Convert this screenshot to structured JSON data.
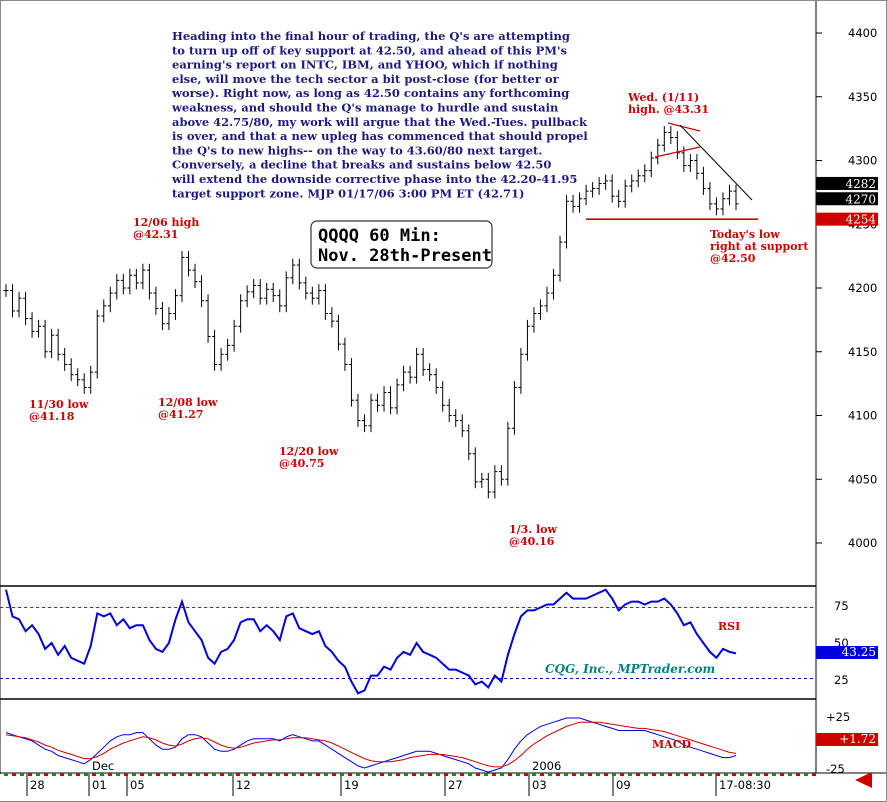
{
  "chart_data": [
    {
      "type": "line",
      "title": "QQQQ 60 Min:",
      "subtitle": "Nov. 28th-Present",
      "ylim": [
        3980,
        4420
      ],
      "y_ticks": [
        "4400",
        "4350",
        "4300",
        "4250",
        "4200",
        "4150",
        "4100",
        "4050",
        "4000"
      ],
      "price_tags": [
        {
          "label": "4282",
          "value": 4282,
          "color": "#000000"
        },
        {
          "label": "4270",
          "value": 4270,
          "color": "#000000"
        },
        {
          "label": "4254",
          "value": 4254,
          "color": "#cc0000"
        }
      ],
      "series": [
        {
          "values": [
            4198,
            4182,
            4192,
            4176,
            4166,
            4170,
            4150,
            4163,
            4148,
            4140,
            4132,
            4128,
            4122,
            4134,
            4178,
            4186,
            4196,
            4206,
            4200,
            4210,
            4204,
            4214,
            4196,
            4184,
            4172,
            4180,
            4194,
            4224,
            4214,
            4205,
            4190,
            4162,
            4140,
            4148,
            4155,
            4170,
            4190,
            4197,
            4202,
            4192,
            4199,
            4194,
            4186,
            4208,
            4218,
            4204,
            4196,
            4192,
            4198,
            4180,
            4174,
            4156,
            4140,
            4112,
            4096,
            4092,
            4112,
            4108,
            4118,
            4106,
            4124,
            4134,
            4130,
            4148,
            4136,
            4132,
            4122,
            4108,
            4100,
            4096,
            4088,
            4070,
            4048,
            4050,
            4040,
            4056,
            4050,
            4090,
            4122,
            4148,
            4170,
            4180,
            4186,
            4196,
            4210,
            4236,
            4268,
            4264,
            4270,
            4276,
            4278,
            4282,
            4284,
            4272,
            4268,
            4280,
            4284,
            4288,
            4292,
            4302,
            4312,
            4322,
            4318,
            4306,
            4296,
            4300,
            4290,
            4278,
            4266,
            4262,
            4270,
            4276,
            4266
          ]
        }
      ],
      "annotations": [
        {
          "lines": [
            "12/06 high",
            "@42.31"
          ]
        },
        {
          "lines": [
            "11/30 low",
            "@41.18"
          ]
        },
        {
          "lines": [
            "12/08 low",
            "@41.27"
          ]
        },
        {
          "lines": [
            "12/20 low",
            "@40.75"
          ]
        },
        {
          "lines": [
            "1/3. low",
            "@40.16"
          ]
        },
        {
          "lines": [
            "Wed. (1/11)",
            "high. @43.31"
          ]
        },
        {
          "lines": [
            "Today's low",
            "right at support",
            "@42.50"
          ]
        }
      ],
      "commentary": [
        "Heading into the final hour of trading, the Q's are attempting",
        "to turn up off of key support at 42.50, and ahead of this PM's",
        "earning's report on INTC, IBM, and YHOO, which if nothing",
        "else, will move the tech sector a bit post-close (for better or",
        "worse). Right now, as long as 42.50 contains any forthcoming",
        "weakness, and should the Q's manage to hurdle and sustain",
        "above 42.75/80, my work will argue that the Wed.-Tues. pullback",
        "is over, and that a new upleg has commenced that should propel",
        "the Q's to new highs-- on the way to 43.60/80 next target.",
        "Conversely, a decline that breaks and sustains below 42.50",
        "will extend the downside corrective phase into the 42.20-41.95",
        "target support zone.  MJP  01/17/06 3:00 PM ET  (42.71)"
      ],
      "support_level": 4254,
      "colors": {
        "support": "#cc0000",
        "bars": "#000000"
      }
    },
    {
      "type": "line",
      "title": "RSI",
      "ylim": [
        10,
        90
      ],
      "y_ticks": [
        "75",
        "50",
        "25"
      ],
      "reference_lines": [
        74,
        26
      ],
      "value_tag": "43.25",
      "series": [
        {
          "name": "RSI",
          "values": [
            86,
            68,
            66,
            58,
            62,
            56,
            46,
            50,
            42,
            48,
            40,
            38,
            36,
            48,
            70,
            68,
            70,
            62,
            66,
            60,
            62,
            62,
            52,
            46,
            44,
            50,
            66,
            78,
            64,
            58,
            52,
            40,
            36,
            44,
            46,
            52,
            64,
            66,
            66,
            58,
            62,
            58,
            52,
            68,
            70,
            60,
            58,
            56,
            58,
            48,
            44,
            38,
            34,
            24,
            16,
            18,
            28,
            28,
            34,
            32,
            40,
            44,
            42,
            50,
            44,
            42,
            40,
            36,
            32,
            32,
            30,
            28,
            22,
            24,
            20,
            28,
            24,
            42,
            56,
            68,
            72,
            72,
            74,
            76,
            76,
            80,
            84,
            80,
            80,
            80,
            82,
            84,
            86,
            80,
            72,
            76,
            78,
            78,
            76,
            78,
            78,
            80,
            76,
            70,
            62,
            64,
            56,
            50,
            44,
            40,
            46,
            44,
            43
          ]
        }
      ],
      "colors": {
        "line": "#0000dd",
        "reference": "#cc0000",
        "tag_bg": "#0000dd"
      }
    },
    {
      "type": "line",
      "title": "MACD",
      "ylim": [
        -30,
        30
      ],
      "y_ticks": [
        "+25",
        "-25"
      ],
      "value_tag": "+1.72",
      "series": [
        {
          "name": "MACD",
          "values": [
            10,
            8,
            6,
            4,
            2,
            -2,
            -6,
            -8,
            -12,
            -14,
            -16,
            -18,
            -20,
            -16,
            -10,
            -4,
            2,
            6,
            8,
            8,
            10,
            10,
            4,
            -2,
            -6,
            -6,
            -4,
            4,
            8,
            8,
            6,
            0,
            -6,
            -8,
            -8,
            -6,
            -2,
            2,
            4,
            4,
            4,
            4,
            2,
            6,
            8,
            6,
            4,
            2,
            2,
            -2,
            -6,
            -10,
            -14,
            -18,
            -22,
            -24,
            -22,
            -20,
            -18,
            -16,
            -14,
            -12,
            -10,
            -8,
            -8,
            -8,
            -10,
            -12,
            -14,
            -16,
            -18,
            -20,
            -24,
            -26,
            -28,
            -26,
            -24,
            -16,
            -6,
            2,
            8,
            12,
            16,
            18,
            20,
            22,
            24,
            24,
            24,
            22,
            20,
            18,
            16,
            14,
            12,
            12,
            12,
            12,
            12,
            10,
            8,
            6,
            4,
            2,
            -2,
            -4,
            -6,
            -8,
            -10,
            -12,
            -14,
            -14,
            -12
          ]
        },
        {
          "name": "Signal",
          "values": [
            8,
            7,
            6,
            5,
            3,
            1,
            -2,
            -4,
            -7,
            -9,
            -11,
            -13,
            -15,
            -15,
            -13,
            -10,
            -6,
            -3,
            0,
            2,
            4,
            6,
            5,
            3,
            0,
            -2,
            -3,
            -1,
            2,
            4,
            5,
            4,
            1,
            -2,
            -4,
            -5,
            -4,
            -2,
            0,
            1,
            2,
            3,
            3,
            4,
            5,
            5,
            5,
            4,
            3,
            2,
            0,
            -3,
            -6,
            -9,
            -12,
            -15,
            -17,
            -18,
            -18,
            -18,
            -17,
            -16,
            -14,
            -13,
            -12,
            -11,
            -11,
            -11,
            -12,
            -13,
            -14,
            -16,
            -18,
            -20,
            -22,
            -23,
            -23,
            -21,
            -17,
            -12,
            -6,
            -1,
            3,
            7,
            10,
            13,
            16,
            18,
            20,
            20,
            20,
            20,
            19,
            18,
            17,
            16,
            15,
            14,
            14,
            13,
            12,
            11,
            9,
            7,
            5,
            3,
            1,
            -1,
            -3,
            -5,
            -7,
            -9,
            -10
          ]
        }
      ],
      "colors": {
        "macd": "#0000dd",
        "signal": "#cc0000",
        "tag_bg": "#cc0000"
      }
    }
  ],
  "x_axis": {
    "months": [
      "Dec",
      "2006"
    ],
    "ticks": [
      "28",
      "01",
      "05",
      "12",
      "19",
      "27",
      "03",
      "09",
      "17-08:30"
    ]
  },
  "watermark": "CQG, Inc., MPTrader.com"
}
